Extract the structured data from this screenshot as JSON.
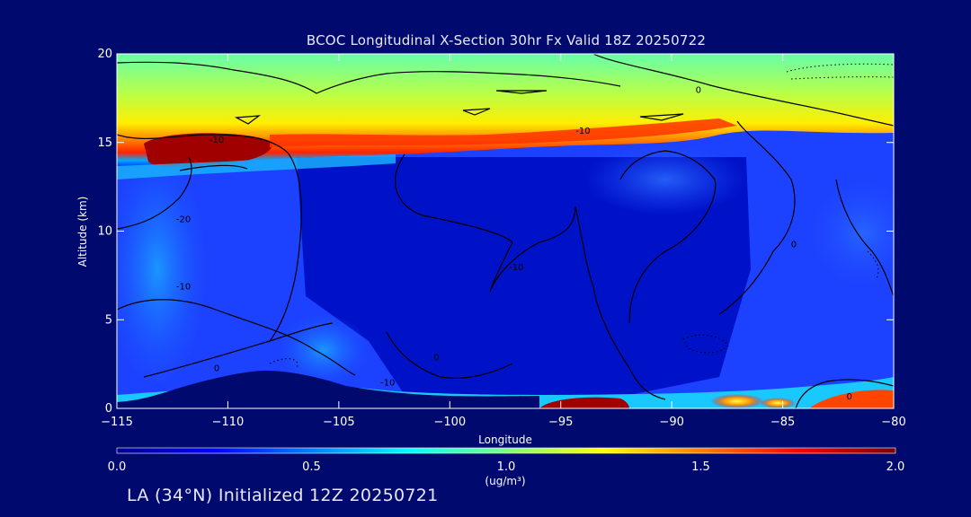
{
  "chart_data": {
    "type": "heatmap",
    "title": "BCOC Longitudinal X-Section 30hr  Fx Valid 18Z 20250722",
    "xlabel": "Longitude",
    "ylabel": "Altitude (km)",
    "xlim": [
      -115,
      -80
    ],
    "ylim": [
      0,
      20
    ],
    "x_ticks": [
      -115,
      -110,
      -105,
      -100,
      -95,
      -90,
      -85,
      -80
    ],
    "y_ticks": [
      0,
      5,
      10,
      15,
      20
    ],
    "colorbar": {
      "min": 0.0,
      "max": 2.0,
      "ticks": [
        "0.0",
        "0.5",
        "1.0",
        "1.5",
        "2.0"
      ],
      "unit_label": "(ug/m³)",
      "colormap": "jet"
    },
    "contour_labels": [
      {
        "text": "0",
        "lon": -88.8,
        "alt": 17.8
      },
      {
        "text": "-10",
        "lon": -110.5,
        "alt": 15.0
      },
      {
        "text": "-10",
        "lon": -94.0,
        "alt": 15.5
      },
      {
        "text": "-20",
        "lon": -112.0,
        "alt": 10.5
      },
      {
        "text": "-10",
        "lon": -97.0,
        "alt": 7.8
      },
      {
        "text": "-10",
        "lon": -112.0,
        "alt": 6.7
      },
      {
        "text": "0",
        "lon": -84.5,
        "alt": 9.1
      },
      {
        "text": "0",
        "lon": -100.6,
        "alt": 2.7
      },
      {
        "text": "-10",
        "lon": -102.8,
        "alt": 1.3
      },
      {
        "text": "0",
        "lon": -110.5,
        "alt": 2.1
      },
      {
        "text": "0",
        "lon": -82.0,
        "alt": 0.5
      }
    ],
    "concentration_features": [
      {
        "description": "high-concentration band near tropopause",
        "alt_range": [
          14,
          16
        ],
        "value_range": [
          1.2,
          2.0
        ]
      },
      {
        "description": "moderate layer above tropopause",
        "alt_range": [
          16,
          20
        ],
        "value_range": [
          0.9,
          1.2
        ]
      },
      {
        "description": "surface maximum near -94",
        "lon_range": [
          -97,
          -91
        ],
        "value": 2.0
      },
      {
        "description": "surface maximum near -82",
        "lon_range": [
          -83.5,
          -80
        ],
        "value": 1.8
      },
      {
        "description": "free troposphere background",
        "alt_range": [
          2,
          13
        ],
        "value_range": [
          0.0,
          0.3
        ]
      }
    ],
    "grid": false
  },
  "footer": {
    "text": "LA (34°N) Initialized 12Z 20250721"
  },
  "colors": {
    "background": "#000a6e",
    "axis": "#ffffff",
    "contour": "#000000"
  }
}
